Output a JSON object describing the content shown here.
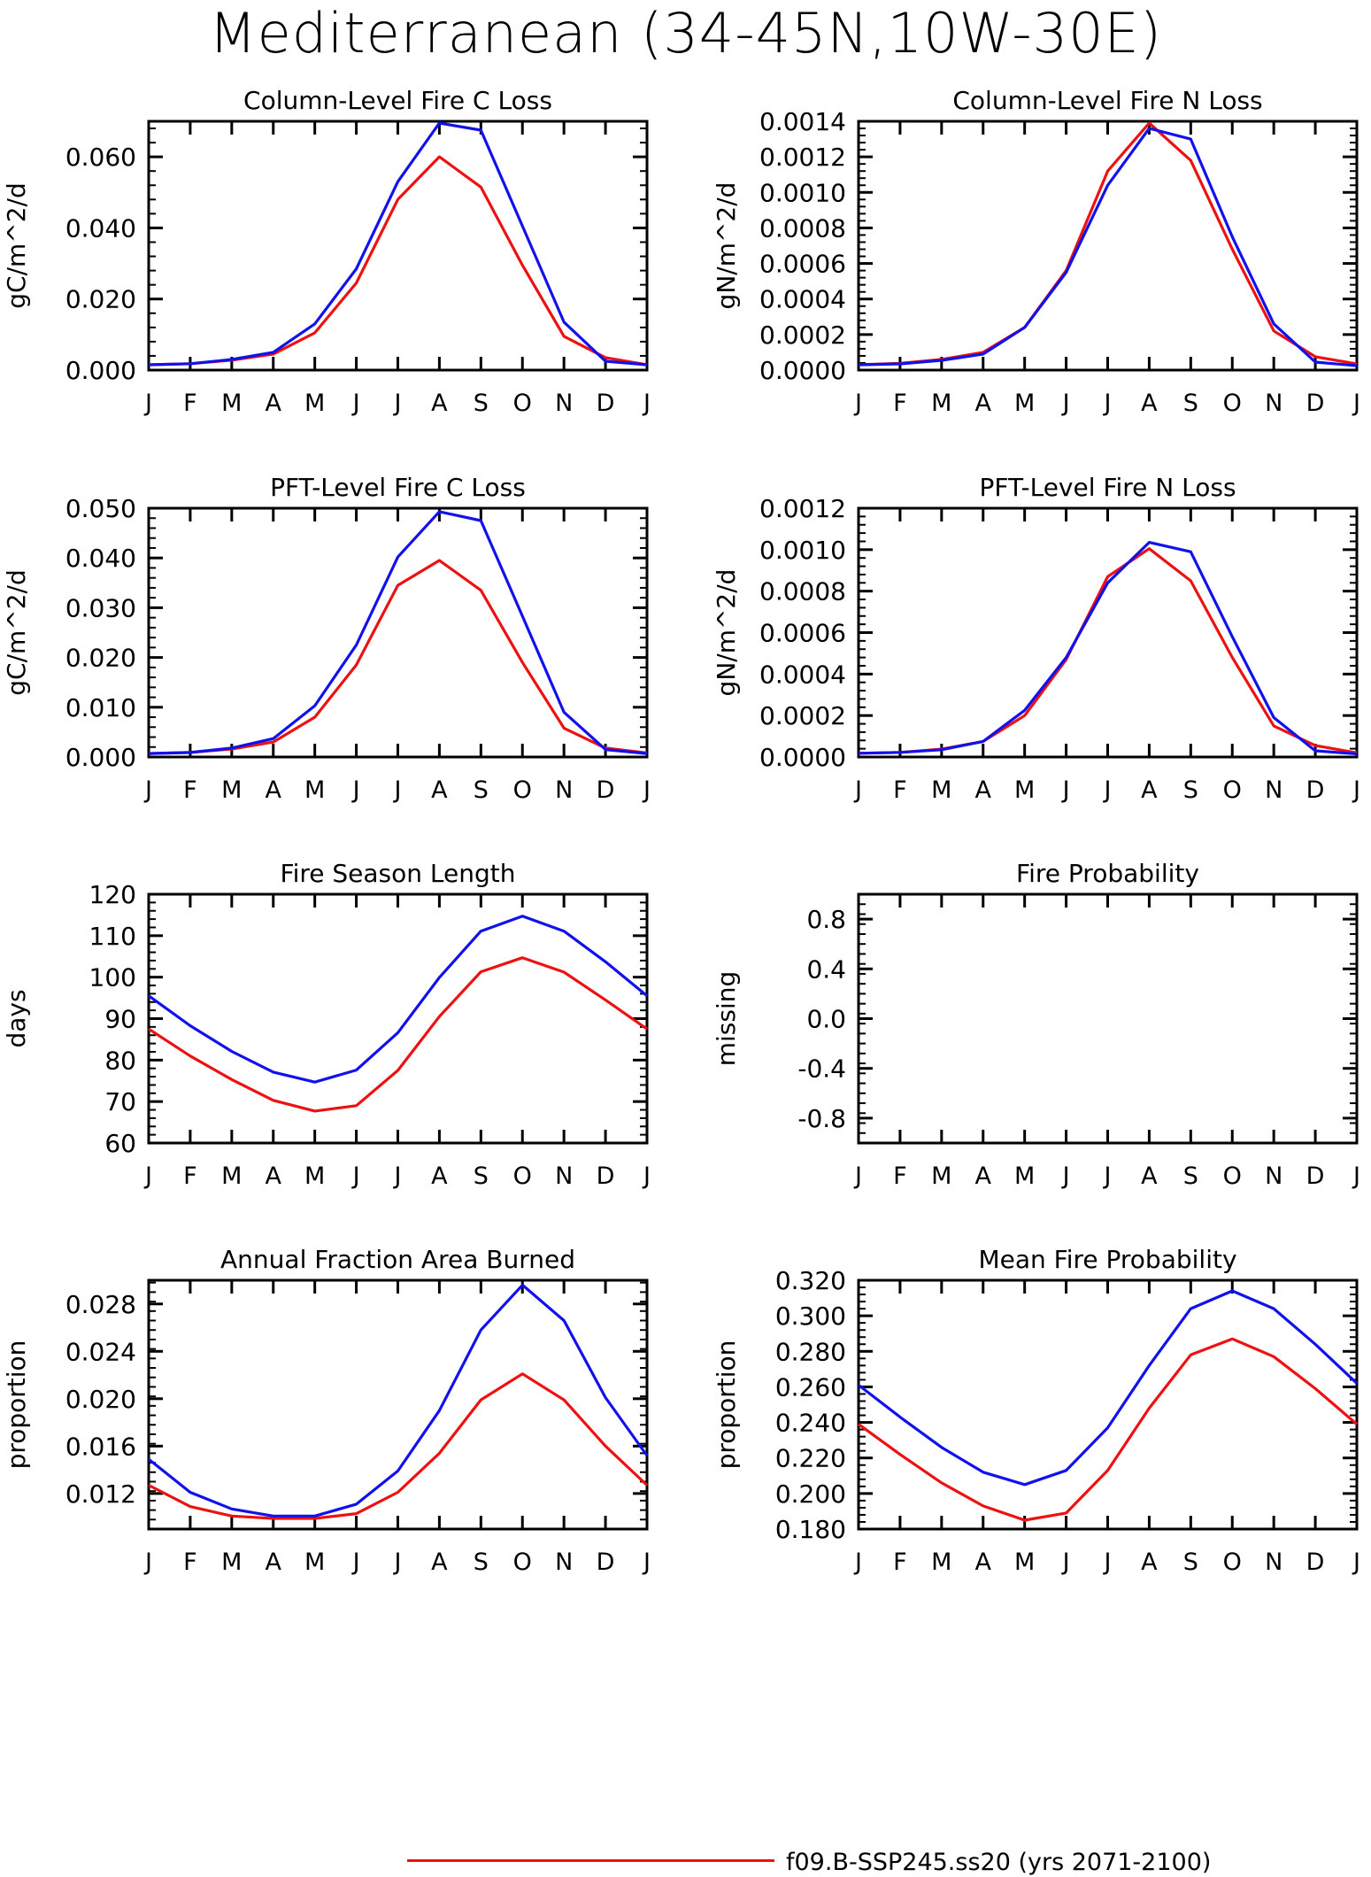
{
  "title": "Mediterranean (34-45N,10W-30E)",
  "legend": {
    "label": "f09.B-SSP245.ss20 (yrs 2071-2100)",
    "color": "#ee1111"
  },
  "colors": {
    "red": "#ee1111",
    "blue": "#1111ee"
  },
  "chart_data": [
    {
      "type": "line",
      "title": "Column-Level Fire C Loss",
      "ylabel": "gC/m^2/d",
      "x": [
        "J",
        "F",
        "M",
        "A",
        "M",
        "J",
        "J",
        "A",
        "S",
        "O",
        "N",
        "D",
        "J"
      ],
      "ylim": [
        0,
        0.07
      ],
      "yticks": [
        "0.000",
        "0.020",
        "0.040",
        "0.060"
      ],
      "ytick_values": [
        0,
        0.02,
        0.04,
        0.06
      ],
      "series": [
        {
          "color": "#ee1111",
          "values": [
            0.0015,
            0.0018,
            0.0028,
            0.0045,
            0.0105,
            0.0245,
            0.048,
            0.06,
            0.0515,
            0.0295,
            0.0095,
            0.0035,
            0.0015
          ]
        },
        {
          "color": "#1111ee",
          "values": [
            0.0015,
            0.0018,
            0.003,
            0.005,
            0.013,
            0.0285,
            0.053,
            0.0695,
            0.0675,
            0.0405,
            0.0135,
            0.0025,
            0.0015
          ]
        }
      ]
    },
    {
      "type": "line",
      "title": "Column-Level Fire N Loss",
      "ylabel": "gN/m^2/d",
      "x": [
        "J",
        "F",
        "M",
        "A",
        "M",
        "J",
        "J",
        "A",
        "S",
        "O",
        "N",
        "D",
        "J"
      ],
      "ylim": [
        0,
        0.0014
      ],
      "yticks": [
        "0.0000",
        "0.0002",
        "0.0004",
        "0.0006",
        "0.0008",
        "0.0010",
        "0.0012",
        "0.0014"
      ],
      "ytick_values": [
        0,
        0.0002,
        0.0004,
        0.0006,
        0.0008,
        0.001,
        0.0012,
        0.0014
      ],
      "series": [
        {
          "color": "#ee1111",
          "values": [
            3e-05,
            3.8e-05,
            6e-05,
            0.0001,
            0.00024,
            0.00056,
            0.00112,
            0.00139,
            0.00118,
            0.00068,
            0.00022,
            7.5e-05,
            3.5e-05
          ]
        },
        {
          "color": "#1111ee",
          "values": [
            3e-05,
            3.5e-05,
            5.5e-05,
            9e-05,
            0.00024,
            0.00055,
            0.00104,
            0.00136,
            0.0013,
            0.00075,
            0.00026,
            4.5e-05,
            2.5e-05
          ]
        }
      ]
    },
    {
      "type": "line",
      "title": "PFT-Level Fire C Loss",
      "ylabel": "gC/m^2/d",
      "x": [
        "J",
        "F",
        "M",
        "A",
        "M",
        "J",
        "J",
        "A",
        "S",
        "O",
        "N",
        "D",
        "J"
      ],
      "ylim": [
        0,
        0.05
      ],
      "yticks": [
        "0.000",
        "0.010",
        "0.020",
        "0.030",
        "0.040",
        "0.050"
      ],
      "ytick_values": [
        0,
        0.01,
        0.02,
        0.03,
        0.04,
        0.05
      ],
      "series": [
        {
          "color": "#ee1111",
          "values": [
            0.0007,
            0.0009,
            0.0016,
            0.003,
            0.008,
            0.0185,
            0.0345,
            0.0395,
            0.0335,
            0.019,
            0.0058,
            0.0018,
            0.0008
          ]
        },
        {
          "color": "#1111ee",
          "values": [
            0.0007,
            0.0009,
            0.0018,
            0.0037,
            0.0103,
            0.0225,
            0.0402,
            0.0493,
            0.0475,
            0.0283,
            0.009,
            0.0015,
            0.0007
          ]
        }
      ]
    },
    {
      "type": "line",
      "title": "PFT-Level Fire N Loss",
      "ylabel": "gN/m^2/d",
      "x": [
        "J",
        "F",
        "M",
        "A",
        "M",
        "J",
        "J",
        "A",
        "S",
        "O",
        "N",
        "D",
        "J"
      ],
      "ylim": [
        0,
        0.0012
      ],
      "yticks": [
        "0.0000",
        "0.0002",
        "0.0004",
        "0.0006",
        "0.0008",
        "0.0010",
        "0.0012"
      ],
      "ytick_values": [
        0,
        0.0002,
        0.0004,
        0.0006,
        0.0008,
        0.001,
        0.0012
      ],
      "series": [
        {
          "color": "#ee1111",
          "values": [
            1.8e-05,
            2.2e-05,
            3.8e-05,
            7.5e-05,
            0.0002,
            0.00047,
            0.00087,
            0.001005,
            0.00085,
            0.00048,
            0.00015,
            5.5e-05,
            2e-05
          ]
        },
        {
          "color": "#1111ee",
          "values": [
            1.8e-05,
            2.2e-05,
            3.5e-05,
            7.5e-05,
            0.000225,
            0.00048,
            0.00084,
            0.001035,
            0.00099,
            0.00058,
            0.00019,
            3e-05,
            1.5e-05
          ]
        }
      ]
    },
    {
      "type": "line",
      "title": "Fire Season Length",
      "ylabel": "days",
      "x": [
        "J",
        "F",
        "M",
        "A",
        "M",
        "J",
        "J",
        "A",
        "S",
        "O",
        "N",
        "D",
        "J"
      ],
      "ylim": [
        60,
        120
      ],
      "yticks": [
        "60",
        "70",
        "80",
        "90",
        "100",
        "110",
        "120"
      ],
      "ytick_values": [
        60,
        70,
        80,
        90,
        100,
        110,
        120
      ],
      "series": [
        {
          "color": "#ee1111",
          "values": [
            87.5,
            81.0,
            75.3,
            70.3,
            67.7,
            69.0,
            77.5,
            90.5,
            101.3,
            104.7,
            101.2,
            94.5,
            87.5
          ]
        },
        {
          "color": "#1111ee",
          "values": [
            95.5,
            88.3,
            82.1,
            77.1,
            74.7,
            77.6,
            86.6,
            99.9,
            111.1,
            114.7,
            111.1,
            103.7,
            95.5
          ]
        }
      ]
    },
    {
      "type": "line",
      "title": "Fire Probability",
      "ylabel": "missing",
      "x": [
        "J",
        "F",
        "M",
        "A",
        "M",
        "J",
        "J",
        "A",
        "S",
        "O",
        "N",
        "D",
        "J"
      ],
      "ylim": [
        -1,
        1
      ],
      "yticks": [
        "-0.8",
        "-0.4",
        "0.0",
        "0.4",
        "0.8"
      ],
      "ytick_values": [
        -0.8,
        -0.4,
        0.0,
        0.4,
        0.8
      ],
      "series": []
    },
    {
      "type": "line",
      "title": "Annual Fraction Area Burned",
      "ylabel": "proportion",
      "x": [
        "J",
        "F",
        "M",
        "A",
        "M",
        "J",
        "J",
        "A",
        "S",
        "O",
        "N",
        "D",
        "J"
      ],
      "ylim": [
        0.009,
        0.03
      ],
      "yticks": [
        "0.012",
        "0.016",
        "0.020",
        "0.024",
        "0.028"
      ],
      "ytick_values": [
        0.012,
        0.016,
        0.02,
        0.024,
        0.028
      ],
      "series": [
        {
          "color": "#ee1111",
          "values": [
            0.0127,
            0.0109,
            0.0101,
            0.0099,
            0.0099,
            0.0103,
            0.0121,
            0.0154,
            0.0199,
            0.0221,
            0.0199,
            0.016,
            0.0127
          ]
        },
        {
          "color": "#1111ee",
          "values": [
            0.0149,
            0.0121,
            0.0107,
            0.0101,
            0.0101,
            0.0111,
            0.0139,
            0.019,
            0.0258,
            0.0296,
            0.0266,
            0.0201,
            0.0152
          ]
        }
      ]
    },
    {
      "type": "line",
      "title": "Mean Fire Probability",
      "ylabel": "proportion",
      "x": [
        "J",
        "F",
        "M",
        "A",
        "M",
        "J",
        "J",
        "A",
        "S",
        "O",
        "N",
        "D",
        "J"
      ],
      "ylim": [
        0.18,
        0.32
      ],
      "yticks": [
        "0.180",
        "0.200",
        "0.220",
        "0.240",
        "0.260",
        "0.280",
        "0.300",
        "0.320"
      ],
      "ytick_values": [
        0.18,
        0.2,
        0.22,
        0.24,
        0.26,
        0.28,
        0.3,
        0.32
      ],
      "series": [
        {
          "color": "#ee1111",
          "values": [
            0.239,
            0.222,
            0.206,
            0.193,
            0.185,
            0.189,
            0.213,
            0.248,
            0.278,
            0.287,
            0.277,
            0.259,
            0.239
          ]
        },
        {
          "color": "#1111ee",
          "values": [
            0.261,
            0.243,
            0.226,
            0.212,
            0.205,
            0.213,
            0.237,
            0.272,
            0.304,
            0.314,
            0.304,
            0.284,
            0.262
          ]
        }
      ]
    }
  ]
}
